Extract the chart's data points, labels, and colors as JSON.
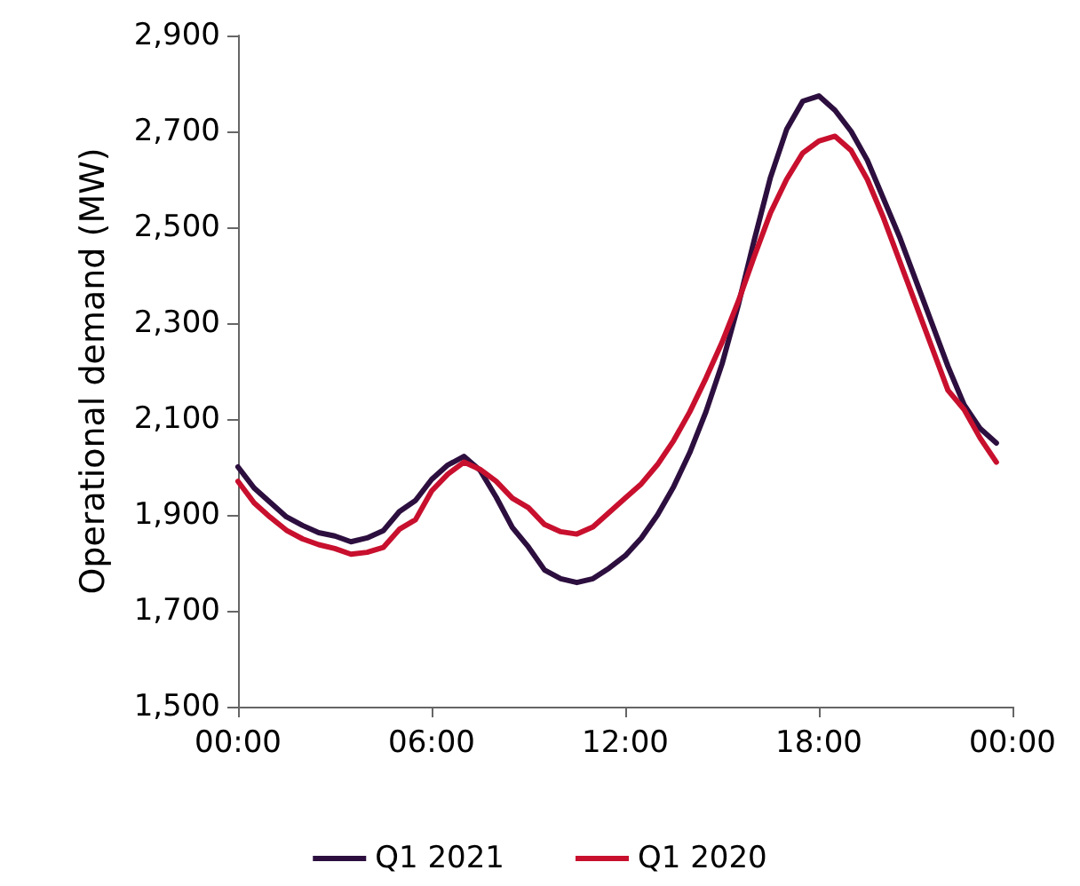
{
  "chart_data": {
    "type": "line",
    "ylabel": "Operational demand (MW)",
    "x": [
      0,
      0.5,
      1,
      1.5,
      2,
      2.5,
      3,
      3.5,
      4,
      4.5,
      5,
      5.5,
      6,
      6.5,
      7,
      7.5,
      8,
      8.5,
      9,
      9.5,
      10,
      10.5,
      11,
      11.5,
      12,
      12.5,
      13,
      13.5,
      14,
      14.5,
      15,
      15.5,
      16,
      16.5,
      17,
      17.5,
      18,
      18.5,
      19,
      19.5,
      20,
      20.5,
      21,
      21.5,
      22,
      22.5,
      23,
      23.5
    ],
    "series": [
      {
        "name": "Q1 2021",
        "color": "#2d0f3f",
        "values": [
          2000,
          1956,
          1926,
          1896,
          1878,
          1863,
          1856,
          1844,
          1852,
          1867,
          1907,
          1930,
          1974,
          2004,
          2022,
          1993,
          1937,
          1874,
          1833,
          1785,
          1767,
          1759,
          1767,
          1789,
          1815,
          1852,
          1900,
          1959,
          2030,
          2115,
          2215,
          2337,
          2474,
          2604,
          2704,
          2763,
          2774,
          2744,
          2700,
          2640,
          2560,
          2480,
          2390,
          2300,
          2210,
          2130,
          2080,
          2050
        ]
      },
      {
        "name": "Q1 2020",
        "color": "#c8102e",
        "values": [
          1970,
          1925,
          1895,
          1868,
          1850,
          1838,
          1830,
          1818,
          1822,
          1832,
          1870,
          1890,
          1950,
          1985,
          2010,
          1995,
          1970,
          1935,
          1915,
          1880,
          1865,
          1860,
          1875,
          1905,
          1935,
          1965,
          2005,
          2055,
          2115,
          2185,
          2260,
          2345,
          2440,
          2530,
          2600,
          2655,
          2680,
          2690,
          2660,
          2600,
          2520,
          2430,
          2340,
          2250,
          2160,
          2120,
          2060,
          2010
        ]
      }
    ],
    "xlim": [
      0,
      24
    ],
    "xticks": [
      {
        "value": 0,
        "label": "00:00"
      },
      {
        "value": 6,
        "label": "06:00"
      },
      {
        "value": 12,
        "label": "12:00"
      },
      {
        "value": 18,
        "label": "18:00"
      },
      {
        "value": 24,
        "label": "00:00"
      }
    ],
    "ylim": [
      1500,
      2900
    ],
    "yticks": [
      {
        "value": 1500,
        "label": "1,500"
      },
      {
        "value": 1700,
        "label": "1,700"
      },
      {
        "value": 1900,
        "label": "1,900"
      },
      {
        "value": 2100,
        "label": "2,100"
      },
      {
        "value": 2300,
        "label": "2,300"
      },
      {
        "value": 2500,
        "label": "2,500"
      },
      {
        "value": 2700,
        "label": "2,700"
      },
      {
        "value": 2900,
        "label": "2,900"
      }
    ],
    "grid": false,
    "legend": "bottom",
    "marker": "none",
    "line_style": "solid"
  }
}
